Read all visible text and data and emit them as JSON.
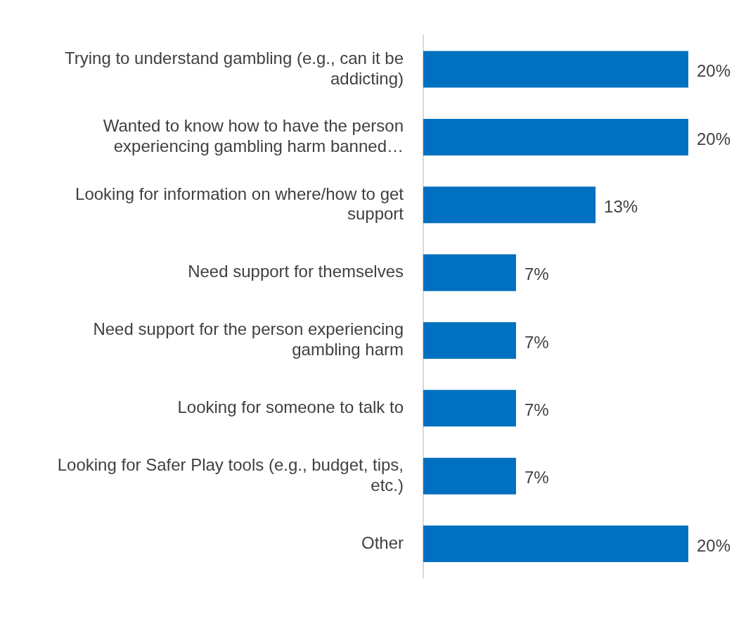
{
  "chart_data": {
    "type": "bar",
    "orientation": "horizontal",
    "categories": [
      "Trying to understand gambling (e.g., can it be addicting)",
      "Wanted to know how to have the person experiencing gambling harm banned…",
      "Looking for information on where/how to get support",
      "Need support for themselves",
      "Need support for the person experiencing gambling harm",
      "Looking for someone to talk to",
      "Looking for Safer Play tools (e.g., budget, tips, etc.)",
      "Other"
    ],
    "values": [
      20,
      20,
      13,
      7,
      7,
      7,
      7,
      20
    ],
    "value_labels": [
      "20%",
      "20%",
      "13%",
      "7%",
      "7%",
      "7%",
      "7%",
      "20%"
    ],
    "color": "#0070c0",
    "grid": false,
    "legend": false
  }
}
